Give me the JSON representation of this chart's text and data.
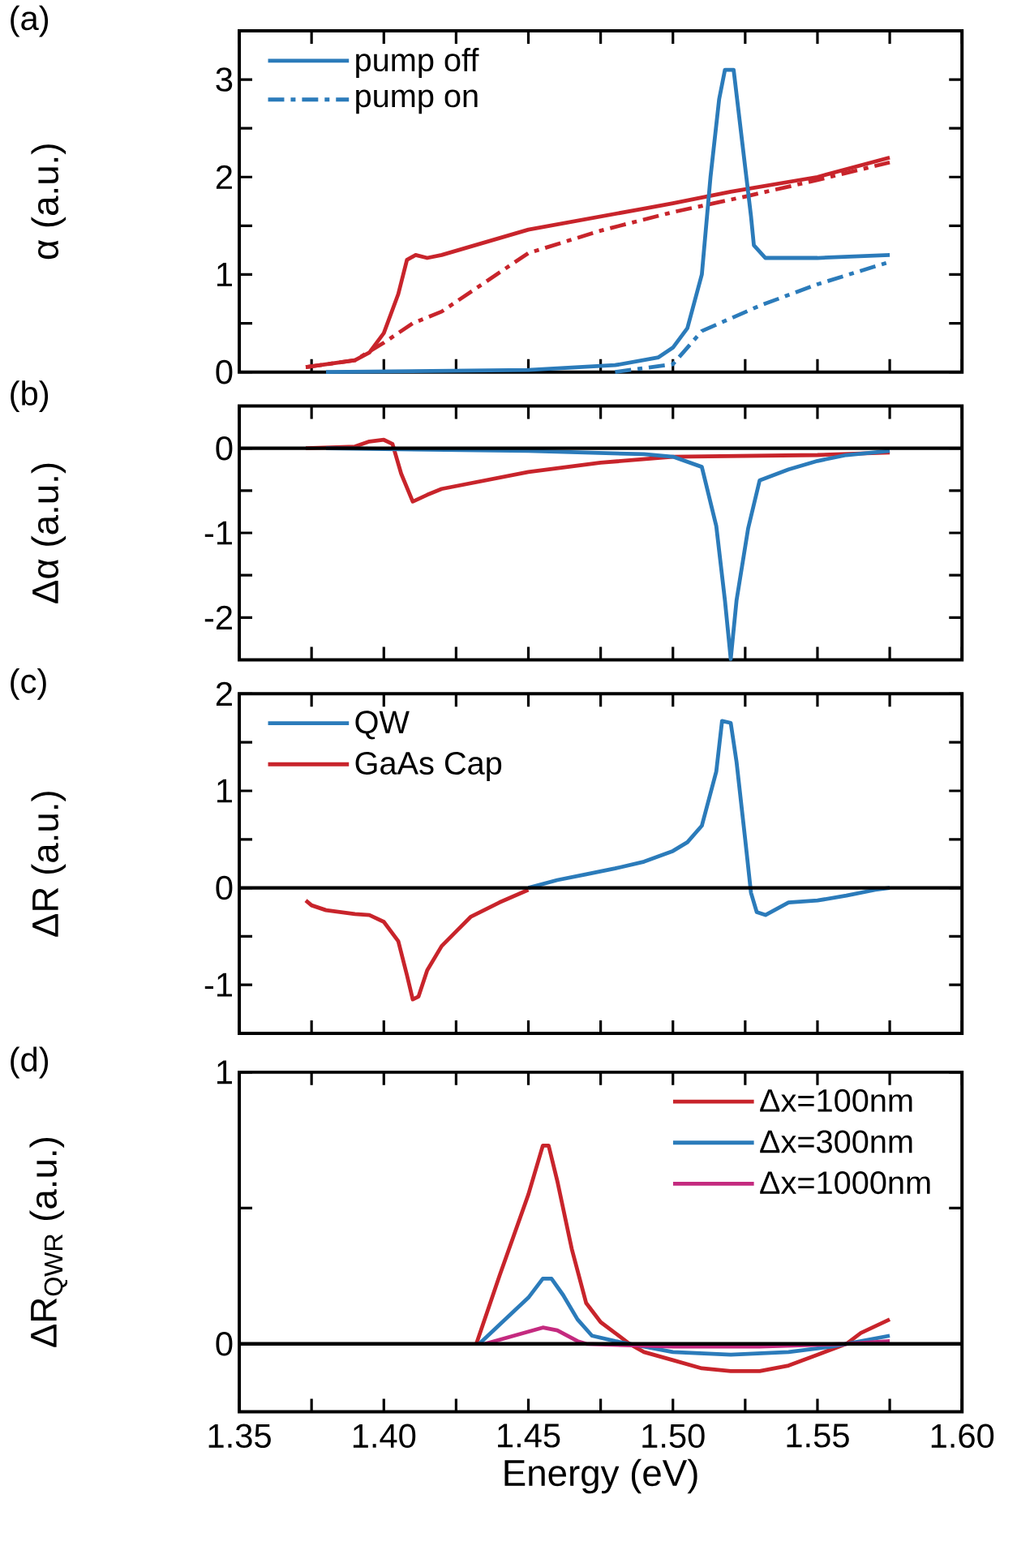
{
  "chart_data": [
    {
      "type": "line",
      "title": "(a)",
      "ylabel": "α (a.u.)",
      "xlim": [
        1.35,
        1.6
      ],
      "ylim": [
        0,
        3.5
      ],
      "xticks": [
        1.35,
        {
          "value": 1.375,
          "label": null
        },
        1.4,
        {
          "value": 1.425,
          "label": null
        },
        1.45,
        {
          "value": 1.475,
          "label": null
        },
        1.5,
        {
          "value": 1.525,
          "label": null
        },
        1.55,
        {
          "value": 1.575,
          "label": null
        },
        1.6
      ],
      "yticks": [
        0,
        {
          "value": 0.5,
          "label": null
        },
        1,
        {
          "value": 1.5,
          "label": null
        },
        2,
        {
          "value": 2.5,
          "label": null
        },
        3,
        {
          "value": 3.5,
          "label": null
        }
      ],
      "tick_labels": "y",
      "legend": "top left",
      "series": [
        {
          "color": "#c8242b",
          "line_style": "solid",
          "x": [
            1.373,
            1.38,
            1.39,
            1.395,
            1.4,
            1.405,
            1.408,
            1.411,
            1.415,
            1.42,
            1.45,
            1.5,
            1.52,
            1.55,
            1.575
          ],
          "values": [
            0.05,
            0.08,
            0.12,
            0.2,
            0.4,
            0.8,
            1.15,
            1.2,
            1.17,
            1.2,
            1.46,
            1.73,
            1.85,
            2.0,
            2.2
          ]
        },
        {
          "color": "#c8242b",
          "line_style": "dashdot",
          "x": [
            1.373,
            1.39,
            1.4,
            1.41,
            1.42,
            1.45,
            1.475,
            1.5,
            1.525,
            1.55,
            1.575
          ],
          "values": [
            0.05,
            0.12,
            0.3,
            0.5,
            0.62,
            1.22,
            1.45,
            1.64,
            1.8,
            1.97,
            2.15
          ]
        },
        {
          "name": "pump off",
          "color": "#2b7bba",
          "line_style": "solid",
          "x": [
            1.38,
            1.45,
            1.48,
            1.495,
            1.5,
            1.505,
            1.51,
            1.513,
            1.516,
            1.518,
            1.521,
            1.523,
            1.527,
            1.528,
            1.532,
            1.55,
            1.575
          ],
          "values": [
            0.0,
            0.02,
            0.07,
            0.15,
            0.25,
            0.45,
            1.0,
            2.0,
            2.8,
            3.1,
            3.1,
            2.6,
            1.6,
            1.3,
            1.17,
            1.17,
            1.2
          ]
        },
        {
          "name": "pump on",
          "color": "#2b7bba",
          "line_style": "dashdot",
          "x": [
            1.48,
            1.5,
            1.505,
            1.51,
            1.52,
            1.53,
            1.55,
            1.575
          ],
          "values": [
            0.0,
            0.08,
            0.25,
            0.42,
            0.55,
            0.68,
            0.9,
            1.13
          ]
        }
      ]
    },
    {
      "type": "line",
      "title": "(b)",
      "ylabel": "Δα (a.u.)",
      "xlim": [
        1.35,
        1.6
      ],
      "ylim": [
        -2.5,
        0.5
      ],
      "xticks": [
        1.35,
        {
          "value": 1.375,
          "label": null
        },
        1.4,
        {
          "value": 1.425,
          "label": null
        },
        1.45,
        {
          "value": 1.475,
          "label": null
        },
        1.5,
        {
          "value": 1.525,
          "label": null
        },
        1.55,
        {
          "value": 1.575,
          "label": null
        },
        1.6
      ],
      "yticks": [
        {
          "value": -2.5,
          "label": null
        },
        -2,
        {
          "value": -1.5,
          "label": null
        },
        -1,
        {
          "value": -0.5,
          "label": null
        },
        0,
        {
          "value": 0.5,
          "label": null
        }
      ],
      "tick_labels": "y",
      "ref_lines": [
        {
          "axis": "y",
          "value": 0,
          "color": "#000000"
        }
      ],
      "series": [
        {
          "color": "#c8242b",
          "x": [
            1.373,
            1.39,
            1.395,
            1.4,
            1.403,
            1.406,
            1.41,
            1.415,
            1.42,
            1.45,
            1.475,
            1.5,
            1.55,
            1.575
          ],
          "values": [
            0,
            0.02,
            0.08,
            0.1,
            0.05,
            -0.3,
            -0.63,
            -0.55,
            -0.48,
            -0.28,
            -0.17,
            -0.1,
            -0.08,
            -0.05
          ]
        },
        {
          "color": "#2b7bba",
          "x": [
            1.38,
            1.45,
            1.49,
            1.5,
            1.51,
            1.515,
            1.518,
            1.52,
            1.522,
            1.526,
            1.53,
            1.54,
            1.55,
            1.56,
            1.575
          ],
          "values": [
            0,
            -0.03,
            -0.07,
            -0.1,
            -0.22,
            -0.92,
            -1.8,
            -2.49,
            -1.8,
            -0.95,
            -0.38,
            -0.25,
            -0.15,
            -0.08,
            -0.03
          ]
        }
      ]
    },
    {
      "type": "line",
      "title": "(c)",
      "ylabel": "ΔR (a.u.)",
      "xlim": [
        1.35,
        1.6
      ],
      "ylim": [
        -1.5,
        2
      ],
      "xticks": [
        1.35,
        {
          "value": 1.375,
          "label": null
        },
        1.4,
        {
          "value": 1.425,
          "label": null
        },
        1.45,
        {
          "value": 1.475,
          "label": null
        },
        1.5,
        {
          "value": 1.525,
          "label": null
        },
        1.55,
        {
          "value": 1.575,
          "label": null
        },
        1.6
      ],
      "yticks": [
        {
          "value": -1.5,
          "label": null
        },
        -1,
        {
          "value": -0.5,
          "label": null
        },
        0,
        {
          "value": 0.5,
          "label": null
        },
        1,
        {
          "value": 1.5,
          "label": null
        },
        2
      ],
      "tick_labels": "y",
      "legend": "top left",
      "ref_lines": [
        {
          "axis": "y",
          "value": 0,
          "color": "#000000"
        }
      ],
      "series": [
        {
          "name": "QW",
          "color": "#2b7bba",
          "x": [
            1.45,
            1.46,
            1.47,
            1.48,
            1.49,
            1.5,
            1.505,
            1.51,
            1.515,
            1.517,
            1.52,
            1.522,
            1.525,
            1.527,
            1.529,
            1.532,
            1.54,
            1.55,
            1.56,
            1.57,
            1.575
          ],
          "values": [
            0.0,
            0.08,
            0.14,
            0.2,
            0.27,
            0.38,
            0.47,
            0.64,
            1.2,
            1.72,
            1.7,
            1.3,
            0.5,
            -0.05,
            -0.25,
            -0.28,
            -0.15,
            -0.13,
            -0.08,
            -0.02,
            0.0
          ]
        },
        {
          "name": "GaAs Cap",
          "color": "#c8242b",
          "x": [
            1.373,
            1.375,
            1.38,
            1.39,
            1.395,
            1.4,
            1.405,
            1.408,
            1.41,
            1.412,
            1.415,
            1.42,
            1.425,
            1.43,
            1.44,
            1.45
          ],
          "values": [
            -0.13,
            -0.18,
            -0.23,
            -0.27,
            -0.28,
            -0.35,
            -0.55,
            -0.9,
            -1.15,
            -1.12,
            -0.85,
            -0.6,
            -0.45,
            -0.3,
            -0.15,
            -0.02
          ]
        }
      ]
    },
    {
      "type": "line",
      "title": "(d)",
      "xlabel": "Energy (eV)",
      "ylabel": "ΔR$_{QWR}$ (a.u.)",
      "xlim": [
        1.35,
        1.6
      ],
      "ylim": [
        -0.25,
        1
      ],
      "xticks": [
        1.35,
        {
          "value": 1.375,
          "label": null
        },
        {
          "value": 1.4,
          "label": "1.40"
        },
        {
          "value": 1.425,
          "label": null
        },
        1.45,
        {
          "value": 1.475,
          "label": null
        },
        {
          "value": 1.5,
          "label": "1.50"
        },
        {
          "value": 1.525,
          "label": null
        },
        1.55,
        {
          "value": 1.575,
          "label": null
        },
        {
          "value": 1.6,
          "label": "1.60"
        }
      ],
      "yticks": [
        0,
        {
          "value": 0.5,
          "label": null
        },
        1
      ],
      "legend": "top right",
      "ref_lines": [
        {
          "axis": "y",
          "value": 0,
          "color": "#000000"
        }
      ],
      "series": [
        {
          "name": "Δx=100nm",
          "color": "#c8242b",
          "x": [
            1.432,
            1.44,
            1.45,
            1.455,
            1.457,
            1.46,
            1.465,
            1.47,
            1.475,
            1.48,
            1.485,
            1.49,
            1.5,
            1.51,
            1.52,
            1.53,
            1.54,
            1.55,
            1.56,
            1.565,
            1.575
          ],
          "values": [
            0.0,
            0.25,
            0.55,
            0.73,
            0.73,
            0.6,
            0.35,
            0.15,
            0.08,
            0.04,
            0.0,
            -0.03,
            -0.06,
            -0.09,
            -0.1,
            -0.1,
            -0.08,
            -0.04,
            0.0,
            0.04,
            0.09
          ]
        },
        {
          "name": "Δx=300nm",
          "color": "#2b7bba",
          "x": [
            1.433,
            1.44,
            1.45,
            1.455,
            1.458,
            1.462,
            1.467,
            1.472,
            1.48,
            1.49,
            1.5,
            1.52,
            1.54,
            1.555,
            1.565,
            1.575
          ],
          "values": [
            0,
            0.07,
            0.17,
            0.24,
            0.24,
            0.18,
            0.09,
            0.03,
            0.01,
            -0.01,
            -0.03,
            -0.04,
            -0.03,
            -0.01,
            0.01,
            0.03
          ]
        },
        {
          "name": "Δx=1000nm",
          "color": "#c42a7f",
          "x": [
            1.435,
            1.445,
            1.455,
            1.46,
            1.467,
            1.47,
            1.5,
            1.53,
            1.56,
            1.575
          ],
          "values": [
            0,
            0.03,
            0.06,
            0.05,
            0.01,
            0.0,
            -0.01,
            -0.01,
            0.0,
            0.01
          ]
        }
      ]
    }
  ]
}
